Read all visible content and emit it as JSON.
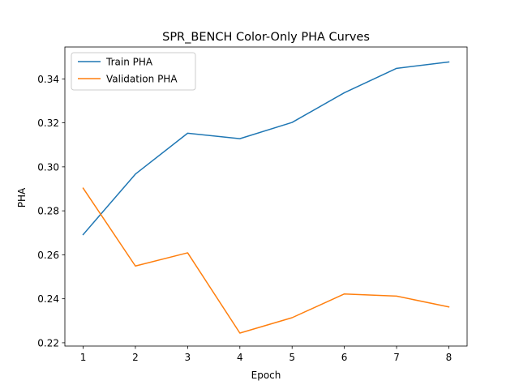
{
  "chart_data": {
    "type": "line",
    "title": "SPR_BENCH Color-Only PHA Curves",
    "xlabel": "Epoch",
    "ylabel": "PHA",
    "x": [
      1,
      2,
      3,
      4,
      5,
      6,
      7,
      8
    ],
    "xticks": [
      "1",
      "2",
      "3",
      "4",
      "5",
      "6",
      "7",
      "8"
    ],
    "yticks": [
      "0.22",
      "0.24",
      "0.26",
      "0.28",
      "0.30",
      "0.32",
      "0.34"
    ],
    "xlim": [
      0.65,
      8.35
    ],
    "ylim": [
      0.2185,
      0.3545
    ],
    "grid": false,
    "legend_position": "top-left",
    "series": [
      {
        "name": "Train PHA",
        "color": "#1f77b4",
        "values": [
          0.2692,
          0.2967,
          0.3153,
          0.3128,
          0.3202,
          0.3337,
          0.3448,
          0.3477
        ]
      },
      {
        "name": "Validation PHA",
        "color": "#ff7f0e",
        "values": [
          0.2903,
          0.2549,
          0.2609,
          0.2244,
          0.2314,
          0.2422,
          0.2412,
          0.2363
        ]
      }
    ]
  }
}
